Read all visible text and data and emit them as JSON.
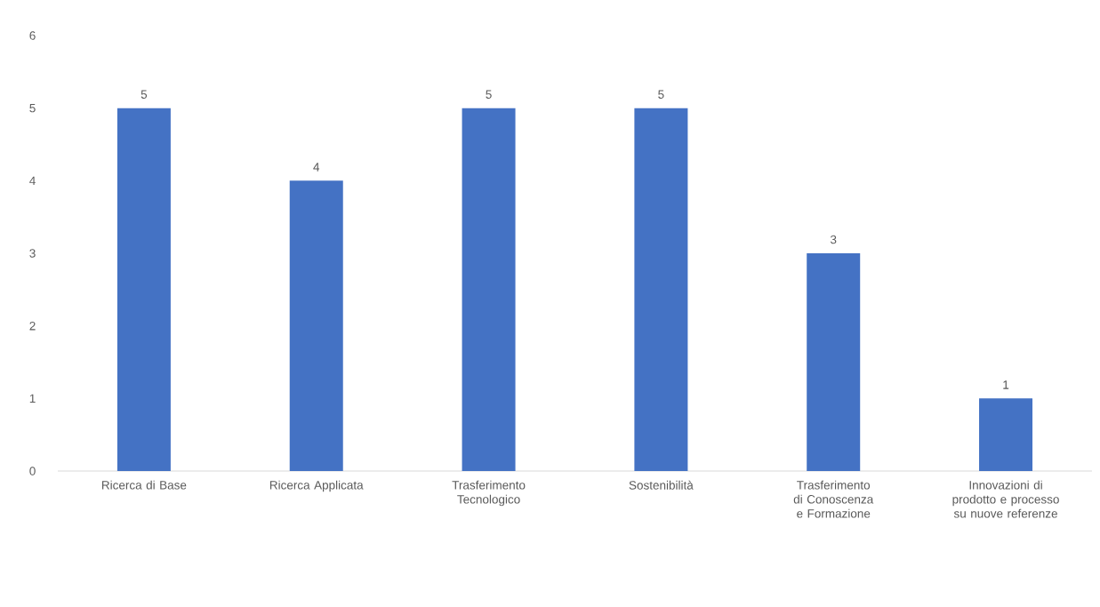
{
  "chart_data": {
    "type": "bar",
    "categories": [
      "Ricerca di Base",
      "Ricerca Applicata",
      "Trasferimento Tecnologico",
      "Sostenibilità",
      "Trasferimento di Conoscenza e Formazione",
      "Innovazioni di prodotto e processo su nuove referenze"
    ],
    "values": [
      5,
      4,
      5,
      5,
      3,
      1
    ],
    "color": "#4472c4",
    "ylim": [
      0,
      6
    ],
    "yticks": [
      0,
      1,
      2,
      3,
      4,
      5,
      6
    ],
    "data_labels": true
  }
}
